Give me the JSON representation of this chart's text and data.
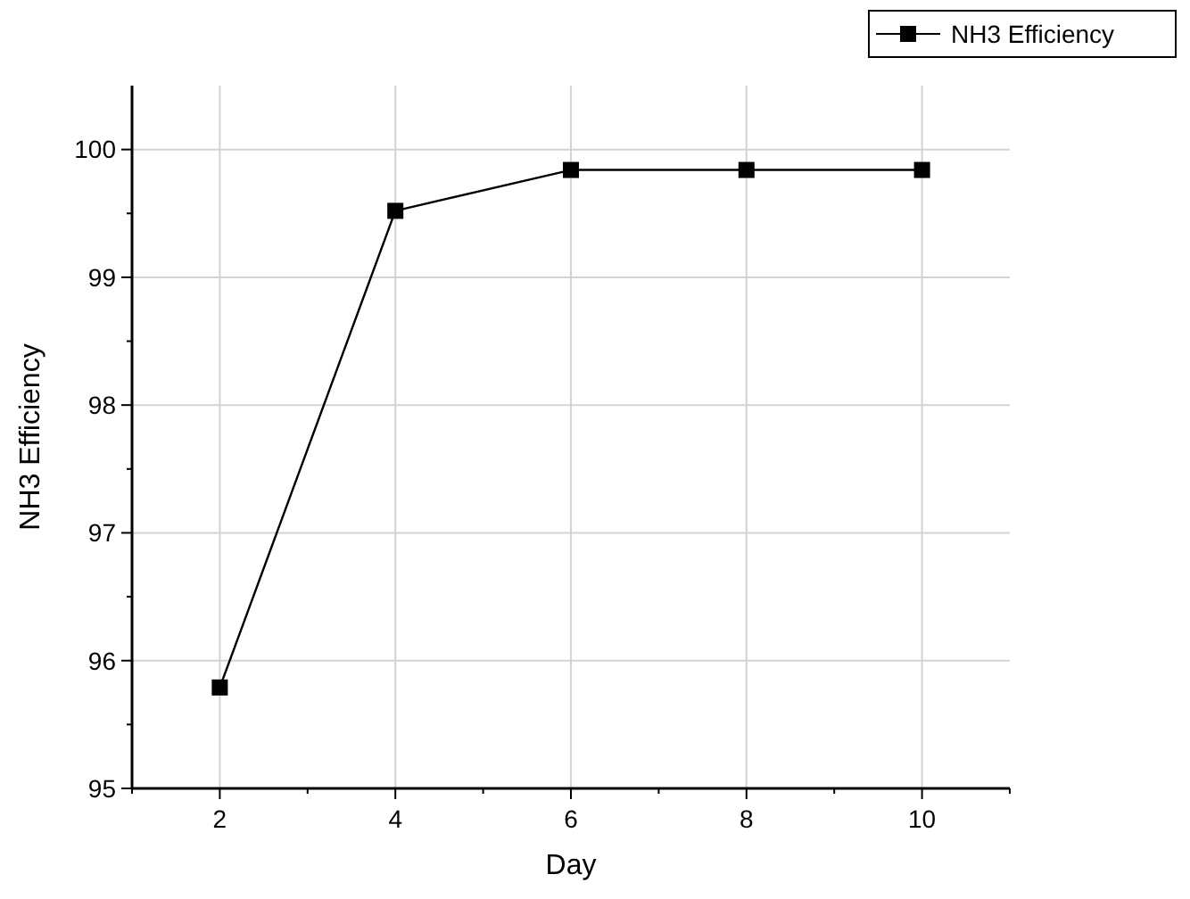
{
  "chart_data": {
    "type": "line",
    "xlabel": "Day",
    "ylabel": "NH3 Efficiency",
    "x": [
      2,
      4,
      6,
      8,
      10
    ],
    "series": [
      {
        "name": "NH3 Efficiency",
        "color": "#000000",
        "values": [
          95.79,
          99.52,
          99.84,
          99.84,
          99.84
        ]
      }
    ],
    "xlim": [
      1,
      11
    ],
    "ylim": [
      95,
      100.5
    ],
    "xticks": [
      {
        "value": 1,
        "label": null
      },
      2,
      {
        "value": 3,
        "label": null
      },
      4,
      {
        "value": 5,
        "label": null
      },
      6,
      {
        "value": 7,
        "label": null
      },
      8,
      {
        "value": 9,
        "label": null
      },
      10,
      {
        "value": 11,
        "label": null
      }
    ],
    "yticks": [
      95,
      {
        "value": 95.5,
        "label": null
      },
      96,
      {
        "value": 96.5,
        "label": null
      },
      97,
      {
        "value": 97.5,
        "label": null
      },
      98,
      {
        "value": 98.5,
        "label": null
      },
      99,
      {
        "value": 99.5,
        "label": null
      },
      100
    ],
    "grid": true,
    "legend": "top right",
    "marker": "square",
    "line_style": "solid"
  }
}
